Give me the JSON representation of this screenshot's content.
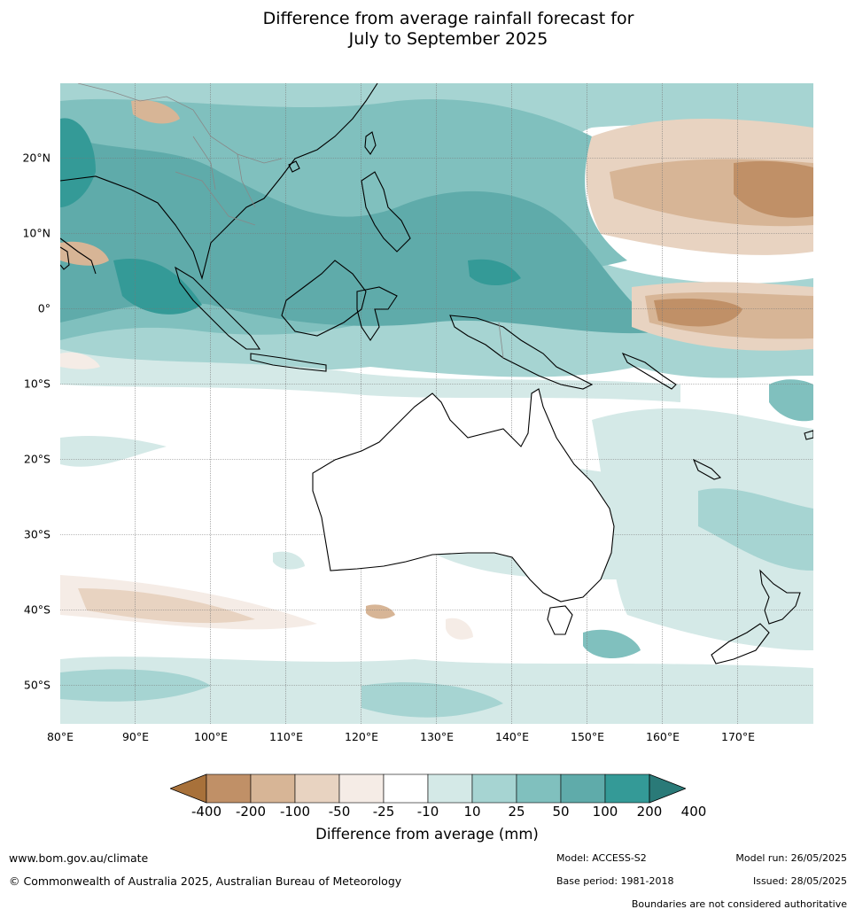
{
  "title_line1": "Difference from average rainfall forecast for",
  "title_line2": "July to September 2025",
  "lat_labels": [
    "20°N",
    "10°N",
    "0°",
    "10°S",
    "20°S",
    "30°S",
    "40°S",
    "50°S"
  ],
  "lon_labels": [
    "80°E",
    "90°E",
    "100°E",
    "110°E",
    "120°E",
    "130°E",
    "140°E",
    "150°E",
    "160°E",
    "170°E"
  ],
  "colorbar": {
    "ticks": [
      "-400",
      "-200",
      "-100",
      "-50",
      "-25",
      "-10",
      "10",
      "25",
      "50",
      "100",
      "200",
      "400"
    ],
    "colors": [
      "#a8713a",
      "#c09067",
      "#d7b596",
      "#e8d3c1",
      "#f5ece6",
      "#ffffff",
      "#d4e9e7",
      "#a6d4d2",
      "#80c0be",
      "#5fabaa",
      "#349a97",
      "#2a7a78"
    ],
    "title": "Difference from average (mm)"
  },
  "footer": {
    "url": "www.bom.gov.au/climate",
    "copyright": "© Commonwealth of Australia 2025, Australian Bureau of Meteorology",
    "model": "Model: ACCESS-S2",
    "base_period": "Base period: 1981-2018",
    "model_run": "Model run: 26/05/2025",
    "issued": "Issued: 28/05/2025",
    "disclaimer": "Boundaries are not considered authoritative"
  }
}
